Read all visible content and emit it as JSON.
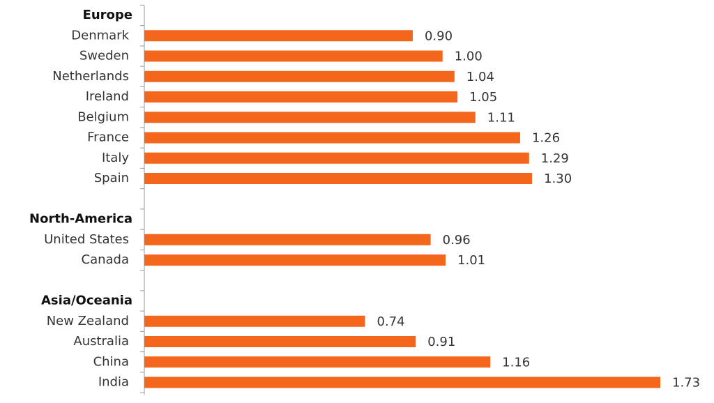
{
  "chart_data": {
    "type": "bar",
    "orientation": "horizontal",
    "color": "#f4661b",
    "groups": [
      {
        "name": "Europe",
        "categories": [
          "Denmark",
          "Sweden",
          "Netherlands",
          "Ireland",
          "Belgium",
          "France",
          "Italy",
          "Spain"
        ],
        "values": [
          0.9,
          1.0,
          1.04,
          1.05,
          1.11,
          1.26,
          1.29,
          1.3
        ],
        "value_labels": [
          "0.90",
          "1.00",
          "1.04",
          "1.05",
          "1.11",
          "1.26",
          "1.29",
          "1.30"
        ]
      },
      {
        "name": "North-America",
        "categories": [
          "United States",
          "Canada"
        ],
        "values": [
          0.96,
          1.01
        ],
        "value_labels": [
          "0.96",
          "1.01"
        ]
      },
      {
        "name": "Asia/Oceania",
        "categories": [
          "New Zealand",
          "Australia",
          "China",
          "India"
        ],
        "values": [
          0.74,
          0.91,
          1.16,
          1.73
        ],
        "value_labels": [
          "0.74",
          "0.91",
          "1.16",
          "1.73"
        ]
      }
    ]
  }
}
